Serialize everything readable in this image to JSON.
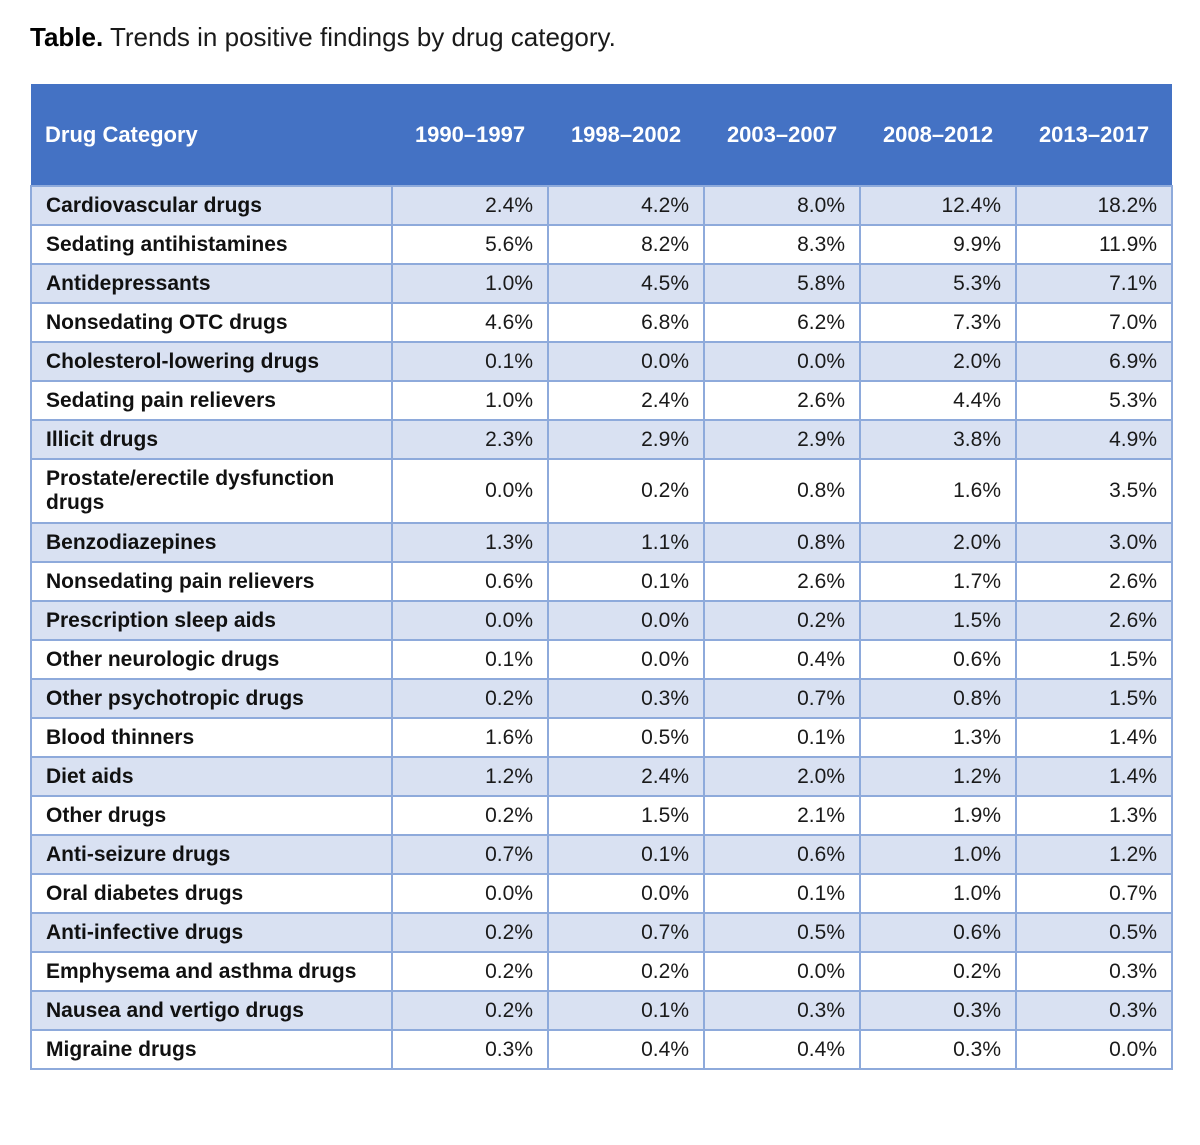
{
  "caption": {
    "label": "Table.",
    "text": "Trends in positive findings by drug category."
  },
  "table": {
    "headers": [
      "Drug Category",
      "1990–1997",
      "1998–2002",
      "2003–2007",
      "2008–2012",
      "2013–2017"
    ],
    "rows": [
      {
        "category": "Cardiovascular drugs",
        "values": [
          "2.4%",
          "4.2%",
          "8.0%",
          "12.4%",
          "18.2%"
        ]
      },
      {
        "category": "Sedating antihistamines",
        "values": [
          "5.6%",
          "8.2%",
          "8.3%",
          "9.9%",
          "11.9%"
        ]
      },
      {
        "category": "Antidepressants",
        "values": [
          "1.0%",
          "4.5%",
          "5.8%",
          "5.3%",
          "7.1%"
        ]
      },
      {
        "category": "Nonsedating OTC drugs",
        "values": [
          "4.6%",
          "6.8%",
          "6.2%",
          "7.3%",
          "7.0%"
        ]
      },
      {
        "category": "Cholesterol-lowering drugs",
        "values": [
          "0.1%",
          "0.0%",
          "0.0%",
          "2.0%",
          "6.9%"
        ]
      },
      {
        "category": "Sedating pain relievers",
        "values": [
          "1.0%",
          "2.4%",
          "2.6%",
          "4.4%",
          "5.3%"
        ]
      },
      {
        "category": "Illicit drugs",
        "values": [
          "2.3%",
          "2.9%",
          "2.9%",
          "3.8%",
          "4.9%"
        ]
      },
      {
        "category": "Prostate/erectile dysfunction drugs",
        "values": [
          "0.0%",
          "0.2%",
          "0.8%",
          "1.6%",
          "3.5%"
        ]
      },
      {
        "category": "Benzodiazepines",
        "values": [
          "1.3%",
          "1.1%",
          "0.8%",
          "2.0%",
          "3.0%"
        ]
      },
      {
        "category": "Nonsedating pain relievers",
        "values": [
          "0.6%",
          "0.1%",
          "2.6%",
          "1.7%",
          "2.6%"
        ]
      },
      {
        "category": "Prescription sleep aids",
        "values": [
          "0.0%",
          "0.0%",
          "0.2%",
          "1.5%",
          "2.6%"
        ]
      },
      {
        "category": "Other neurologic drugs",
        "values": [
          "0.1%",
          "0.0%",
          "0.4%",
          "0.6%",
          "1.5%"
        ]
      },
      {
        "category": "Other psychotropic drugs",
        "values": [
          "0.2%",
          "0.3%",
          "0.7%",
          "0.8%",
          "1.5%"
        ]
      },
      {
        "category": "Blood thinners",
        "values": [
          "1.6%",
          "0.5%",
          "0.1%",
          "1.3%",
          "1.4%"
        ]
      },
      {
        "category": "Diet aids",
        "values": [
          "1.2%",
          "2.4%",
          "2.0%",
          "1.2%",
          "1.4%"
        ]
      },
      {
        "category": "Other drugs",
        "values": [
          "0.2%",
          "1.5%",
          "2.1%",
          "1.9%",
          "1.3%"
        ]
      },
      {
        "category": "Anti-seizure drugs",
        "values": [
          "0.7%",
          "0.1%",
          "0.6%",
          "1.0%",
          "1.2%"
        ]
      },
      {
        "category": "Oral diabetes drugs",
        "values": [
          "0.0%",
          "0.0%",
          "0.1%",
          "1.0%",
          "0.7%"
        ]
      },
      {
        "category": "Anti-infective drugs",
        "values": [
          "0.2%",
          "0.7%",
          "0.5%",
          "0.6%",
          "0.5%"
        ]
      },
      {
        "category": "Emphysema and asthma drugs",
        "values": [
          "0.2%",
          "0.2%",
          "0.0%",
          "0.2%",
          "0.3%"
        ]
      },
      {
        "category": "Nausea and vertigo drugs",
        "values": [
          "0.2%",
          "0.1%",
          "0.3%",
          "0.3%",
          "0.3%"
        ]
      },
      {
        "category": "Migraine drugs",
        "values": [
          "0.3%",
          "0.4%",
          "0.4%",
          "0.3%",
          "0.0%"
        ]
      }
    ]
  },
  "colors": {
    "header_bg": "#4472c4",
    "header_text": "#ffffff",
    "band_bg": "#d9e1f2",
    "border": "#8eaadb"
  }
}
